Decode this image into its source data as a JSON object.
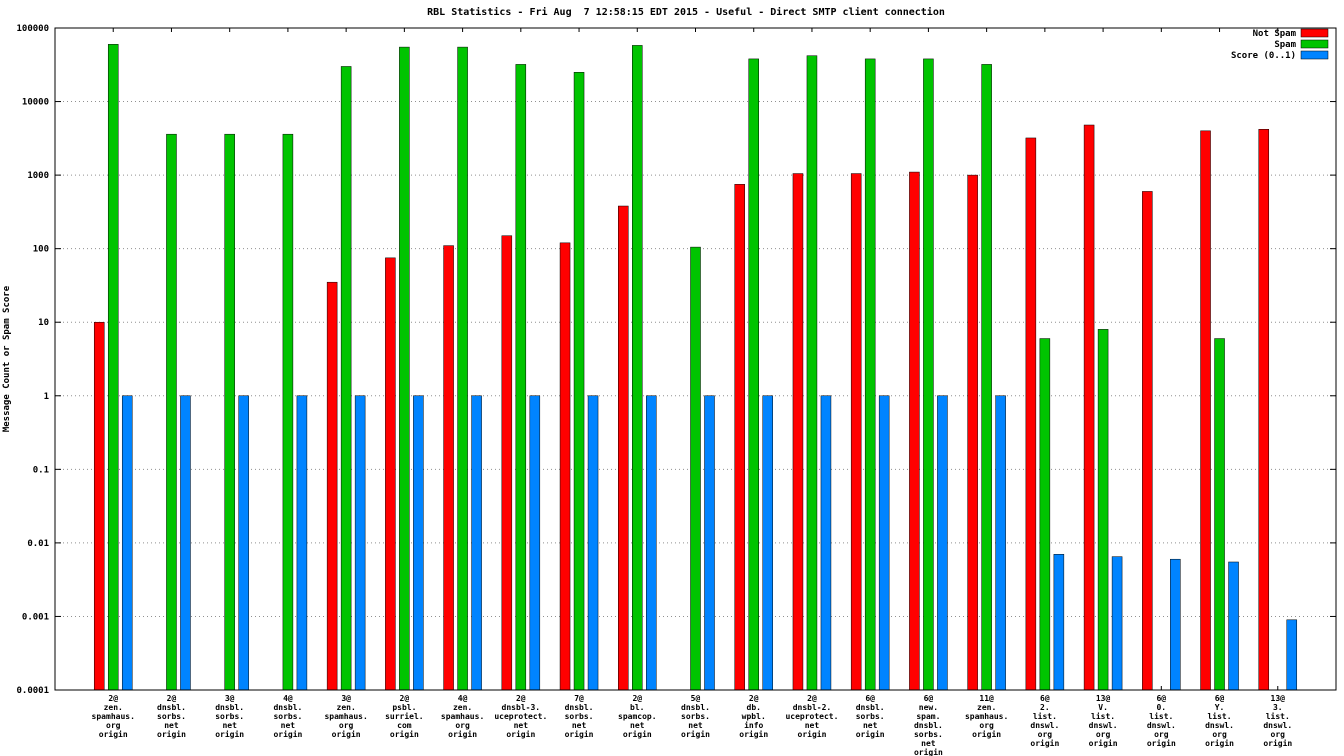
{
  "chart_data": {
    "type": "bar",
    "title": "RBL Statistics - Fri Aug  7 12:58:15 EDT 2015 - Useful - Direct SMTP client connection",
    "ylabel": "Message Count or Spam Score",
    "log_scale_y": true,
    "ylim": [
      0.0001,
      100000
    ],
    "y_ticks": [
      100000,
      10000,
      1000,
      100,
      10,
      1,
      0.1,
      0.01,
      0.001,
      0.0001
    ],
    "y_tick_labels": [
      "100000",
      "10000",
      "1000",
      "100",
      "10",
      "1",
      "0.1",
      "0.01",
      "0.001",
      "0.0001"
    ],
    "grid": "horizontal-dotted",
    "legend_position": "top-right",
    "categories": [
      [
        "2@",
        "zen.",
        "spamhaus.",
        "org",
        "origin"
      ],
      [
        "2@",
        "dnsbl.",
        "sorbs.",
        "net",
        "origin"
      ],
      [
        "3@",
        "dnsbl.",
        "sorbs.",
        "net",
        "origin"
      ],
      [
        "4@",
        "dnsbl.",
        "sorbs.",
        "net",
        "origin"
      ],
      [
        "3@",
        "zen.",
        "spamhaus.",
        "org",
        "origin"
      ],
      [
        "2@",
        "psbl.",
        "surriel.",
        "com",
        "origin"
      ],
      [
        "4@",
        "zen.",
        "spamhaus.",
        "org",
        "origin"
      ],
      [
        "2@",
        "dnsbl-3.",
        "uceprotect.",
        "net",
        "origin"
      ],
      [
        "7@",
        "dnsbl.",
        "sorbs.",
        "net",
        "origin"
      ],
      [
        "2@",
        "bl.",
        "spamcop.",
        "net",
        "origin"
      ],
      [
        "5@",
        "dnsbl.",
        "sorbs.",
        "net",
        "origin"
      ],
      [
        "2@",
        "db.",
        "wpbl.",
        "info",
        "origin"
      ],
      [
        "2@",
        "dnsbl-2.",
        "uceprotect.",
        "net",
        "origin"
      ],
      [
        "6@",
        "dnsbl.",
        "sorbs.",
        "net",
        "origin"
      ],
      [
        "6@",
        "new.",
        "spam.",
        "dnsbl.",
        "sorbs.",
        "net",
        "origin"
      ],
      [
        "11@",
        "zen.",
        "spamhaus.",
        "org",
        "origin"
      ],
      [
        "6@",
        "2.",
        "list.",
        "dnswl.",
        "org",
        "origin"
      ],
      [
        "13@",
        "V.",
        "list.",
        "dnswl.",
        "org",
        "origin"
      ],
      [
        "6@",
        "0.",
        "list.",
        "dnswl.",
        "org",
        "origin"
      ],
      [
        "6@",
        "Y.",
        "list.",
        "dnswl.",
        "org",
        "origin"
      ],
      [
        "13@",
        "3.",
        "list.",
        "dnswl.",
        "org",
        "origin"
      ]
    ],
    "series": [
      {
        "name": "Not Spam",
        "color": "#ff0000",
        "values": [
          10,
          0,
          0,
          0,
          35,
          75,
          110,
          150,
          120,
          380,
          0,
          750,
          1050,
          1050,
          1100,
          1000,
          3200,
          4800,
          600,
          4000,
          4200
        ]
      },
      {
        "name": "Spam",
        "color": "#00c400",
        "values": [
          60000,
          3600,
          3600,
          3600,
          30000,
          55000,
          55000,
          32000,
          25000,
          58000,
          105,
          38000,
          42000,
          38000,
          38000,
          32000,
          6,
          8,
          0,
          6,
          0
        ]
      },
      {
        "name": "Score (0..1)",
        "color": "#0084ff",
        "values": [
          1,
          1,
          1,
          1,
          1,
          1,
          1,
          1,
          1,
          1,
          1,
          1,
          1,
          1,
          1,
          1,
          0.007,
          0.0065,
          0.006,
          0.0055,
          0.0009
        ]
      }
    ]
  }
}
